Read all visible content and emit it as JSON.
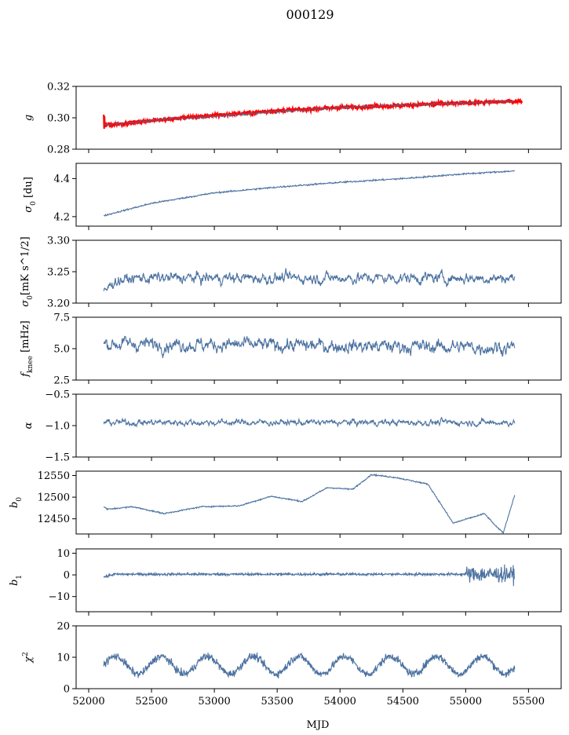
{
  "figure_title": "000129",
  "chart_data": {
    "type": "line",
    "title": "000129",
    "xlabel": "MJD",
    "xlim": [
      51900,
      55760
    ],
    "xticks": [
      52000,
      52500,
      53000,
      53500,
      54000,
      54500,
      55000,
      55500
    ],
    "xtick_labels": [
      "52000",
      "52500",
      "53000",
      "53500",
      "54000",
      "54500",
      "55000",
      "55500"
    ],
    "x_start": 52120,
    "x_end": 55390,
    "line_color": "#4c72a0",
    "overlay_color": "#ff0000",
    "panels": [
      {
        "ylabel": "g",
        "ylim": [
          0.28,
          0.32
        ],
        "yticks": [
          0.28,
          0.3,
          0.32
        ],
        "ytick_labels": [
          "0.28",
          "0.30",
          "0.32"
        ],
        "trend": [
          [
            52120,
            0.2955
          ],
          [
            52300,
            0.2965
          ],
          [
            52600,
            0.299
          ],
          [
            53000,
            0.301
          ],
          [
            53500,
            0.304
          ],
          [
            54000,
            0.3065
          ],
          [
            54500,
            0.308
          ],
          [
            55000,
            0.3095
          ],
          [
            55390,
            0.3105
          ]
        ],
        "noise": 0.0008,
        "overlay": {
          "name": "",
          "trend": [
            [
              52120,
              0.2955
            ],
            [
              52300,
              0.2965
            ],
            [
              52600,
              0.299
            ],
            [
              53000,
              0.3015
            ],
            [
              53500,
              0.3045
            ],
            [
              54000,
              0.3065
            ],
            [
              54500,
              0.308
            ],
            [
              55000,
              0.3095
            ],
            [
              55450,
              0.3105
            ]
          ],
          "noise": 0.0012
        }
      },
      {
        "ylabel": "σ0 [du]",
        "ylim": [
          4.15,
          4.48
        ],
        "yticks": [
          4.2,
          4.4
        ],
        "ytick_labels": [
          "4.2",
          "4.4"
        ],
        "trend": [
          [
            52120,
            4.205
          ],
          [
            52500,
            4.27
          ],
          [
            53000,
            4.325
          ],
          [
            53500,
            4.355
          ],
          [
            54000,
            4.38
          ],
          [
            54500,
            4.4
          ],
          [
            55000,
            4.425
          ],
          [
            55390,
            4.44
          ]
        ],
        "noise": 0.004
      },
      {
        "ylabel": "σ0[mK s^1/2]",
        "ylim": [
          3.2,
          3.3
        ],
        "yticks": [
          3.2,
          3.25,
          3.3
        ],
        "ytick_labels": [
          "3.20",
          "3.25",
          "3.30"
        ],
        "trend": [
          [
            52120,
            3.215
          ],
          [
            52200,
            3.235
          ],
          [
            52400,
            3.24
          ],
          [
            55390,
            3.24
          ]
        ],
        "noise": 0.008
      },
      {
        "ylabel": "f_knee [mHz]",
        "ylim": [
          2.5,
          7.5
        ],
        "yticks": [
          2.5,
          5.0,
          7.5
        ],
        "ytick_labels": [
          "2.5",
          "5.0",
          "7.5"
        ],
        "trend": [
          [
            52120,
            5.4
          ],
          [
            55390,
            5.1
          ]
        ],
        "noise": 0.5
      },
      {
        "ylabel": "α",
        "ylim": [
          -1.5,
          -0.5
        ],
        "yticks": [
          -1.5,
          -1.0,
          -0.5
        ],
        "ytick_labels": [
          "−1.5",
          "−1.0",
          "−0.5"
        ],
        "trend": [
          [
            52120,
            -0.95
          ],
          [
            55390,
            -0.95
          ]
        ],
        "noise": 0.045
      },
      {
        "ylabel": "b0",
        "ylim": [
          12415,
          12560
        ],
        "yticks": [
          12450,
          12500,
          12550
        ],
        "ytick_labels": [
          "12450",
          "12500",
          "12550"
        ],
        "trend": [
          [
            52120,
            12478
          ],
          [
            52150,
            12472
          ],
          [
            52350,
            12478
          ],
          [
            52600,
            12462
          ],
          [
            52900,
            12478
          ],
          [
            53200,
            12480
          ],
          [
            53450,
            12502
          ],
          [
            53700,
            12490
          ],
          [
            53900,
            12522
          ],
          [
            54100,
            12518
          ],
          [
            54250,
            12552
          ],
          [
            54450,
            12545
          ],
          [
            54700,
            12530
          ],
          [
            54900,
            12440
          ],
          [
            55150,
            12462
          ],
          [
            55250,
            12430
          ],
          [
            55300,
            12418
          ],
          [
            55390,
            12505
          ]
        ],
        "noise": 1.5
      },
      {
        "ylabel": "b1",
        "ylim": [
          -17,
          12
        ],
        "yticks": [
          -10,
          0,
          10
        ],
        "ytick_labels": [
          "−10",
          "0",
          "10"
        ],
        "trend": [
          [
            52120,
            -1
          ],
          [
            52200,
            0.3
          ],
          [
            55390,
            0.3
          ]
        ],
        "noise": 0.6
      },
      {
        "ylabel": "χ2",
        "ylim": [
          0,
          20
        ],
        "yticks": [
          0,
          10,
          20
        ],
        "ytick_labels": [
          "0",
          "10",
          "20"
        ],
        "trend": [
          [
            52120,
            7.5
          ],
          [
            55390,
            7.5
          ]
        ],
        "noise": 1.2
      }
    ]
  }
}
